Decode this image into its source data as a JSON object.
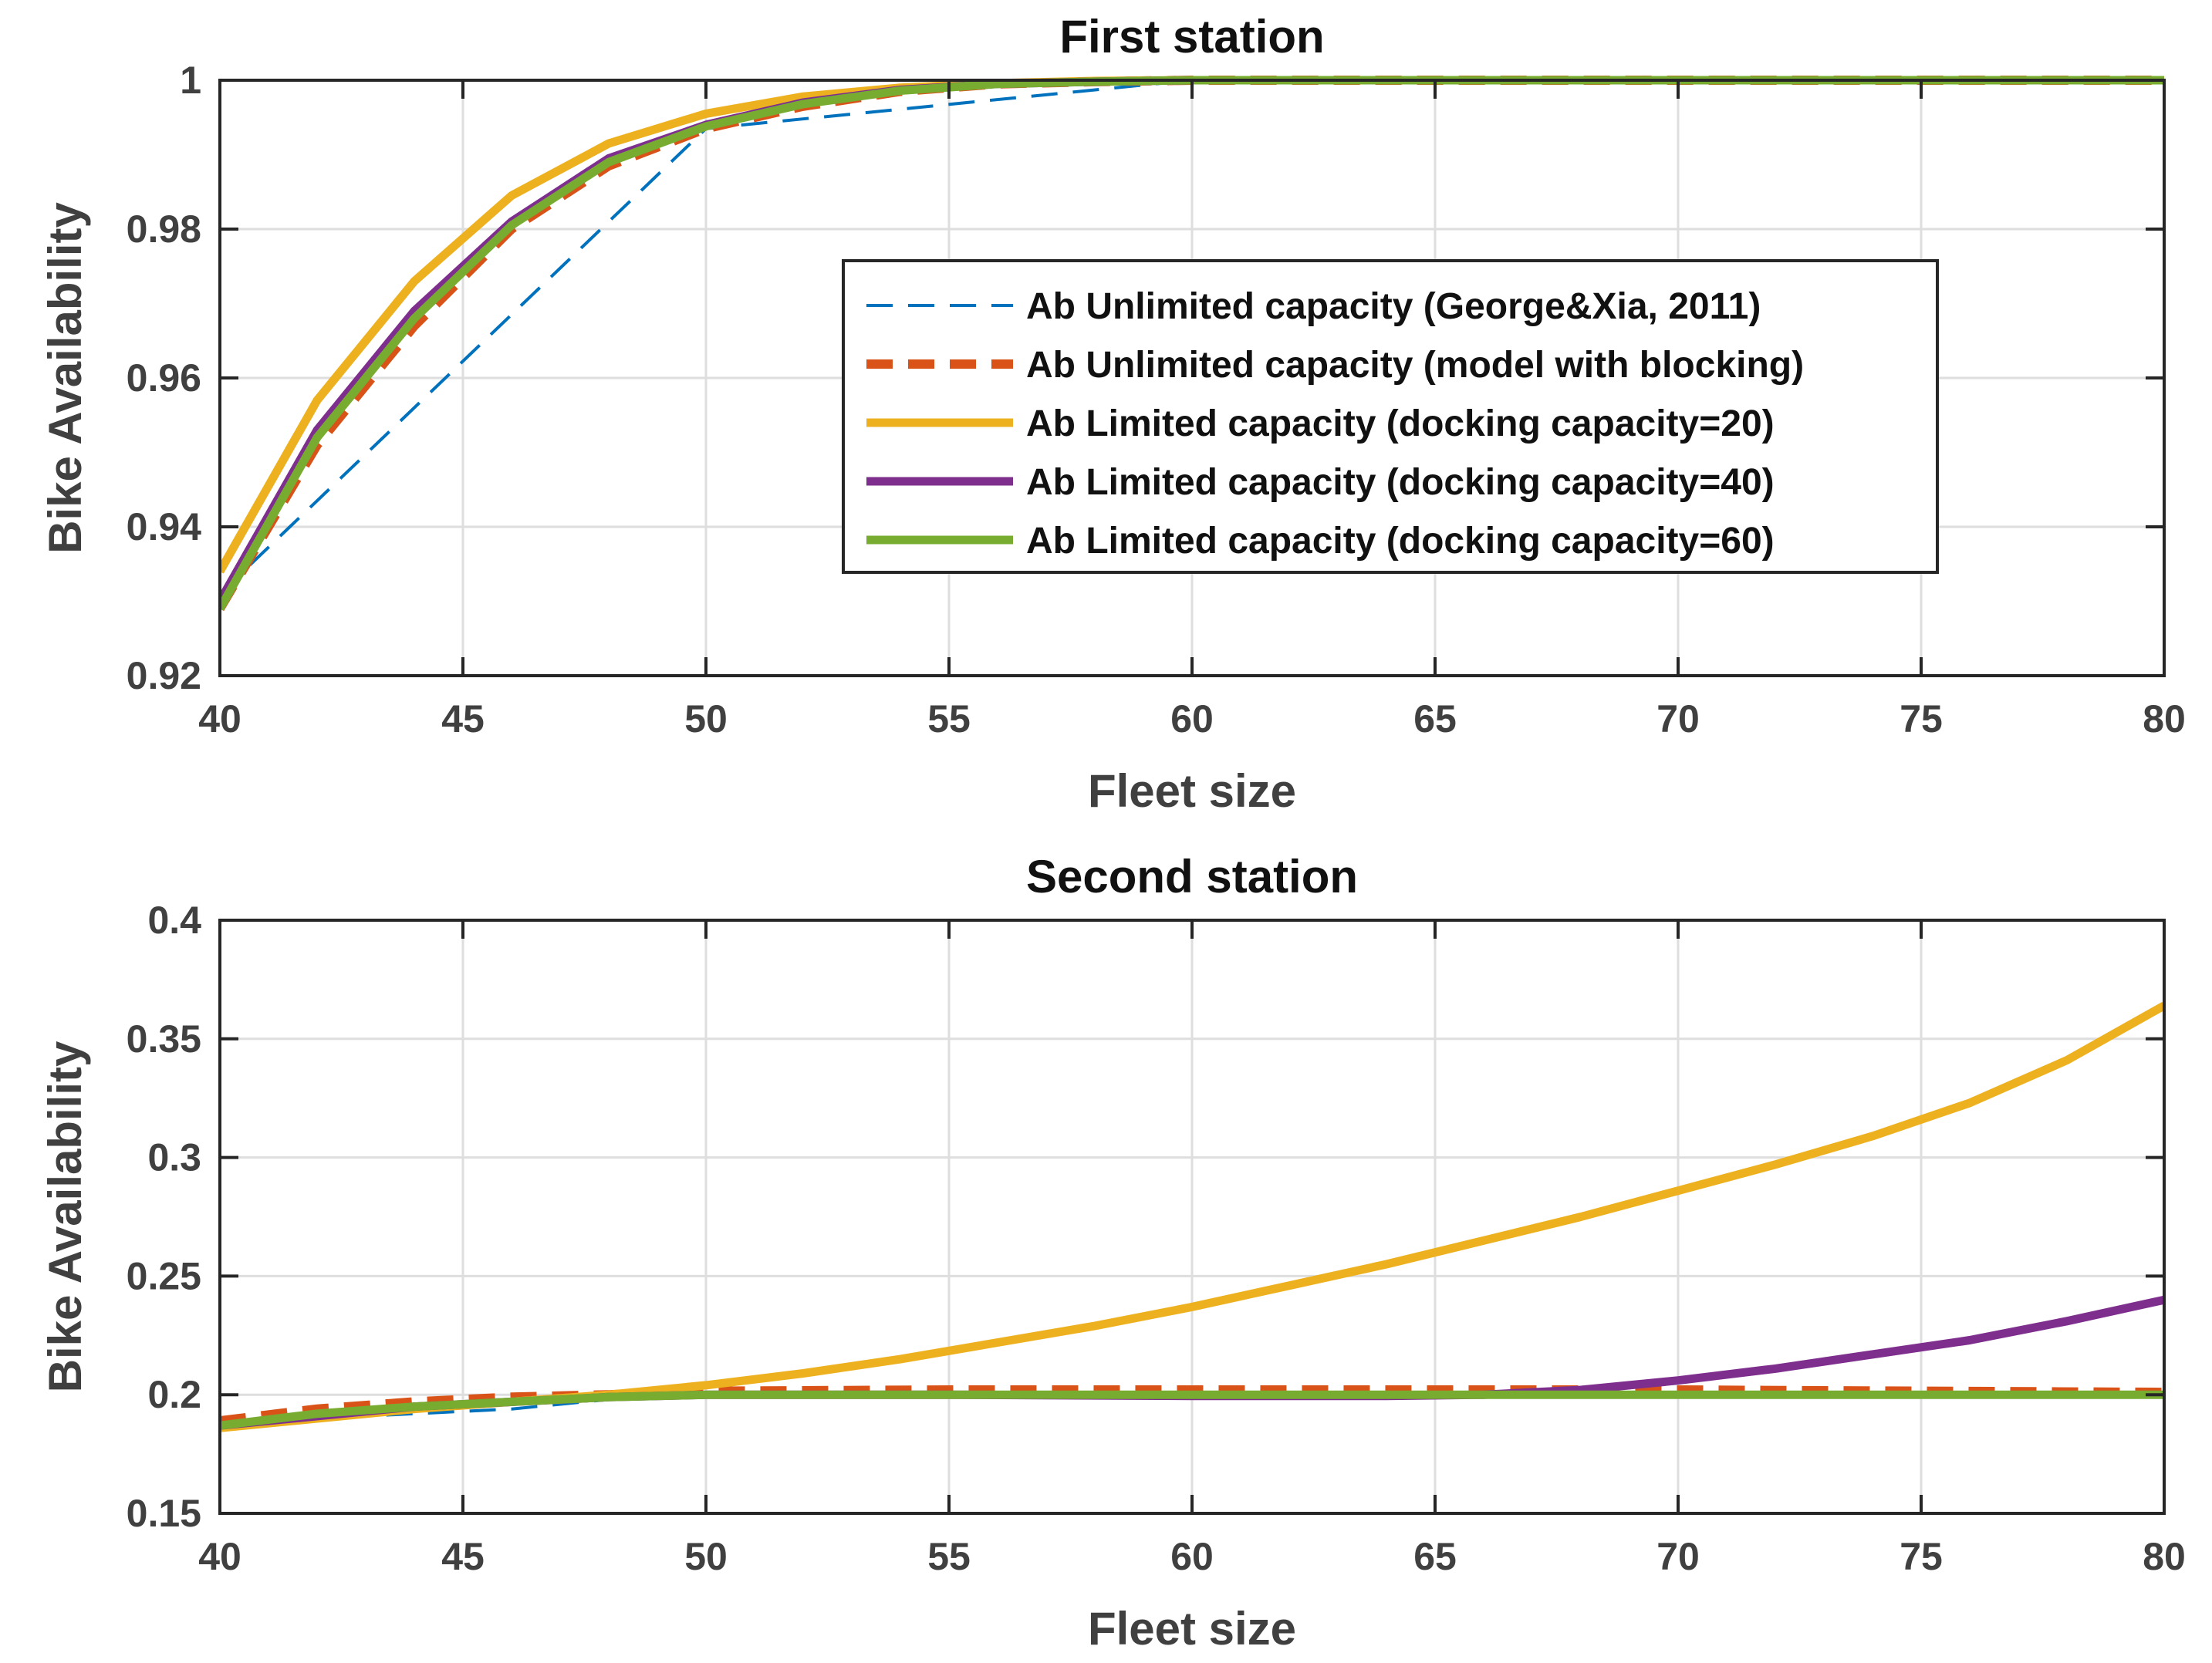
{
  "chart_data": [
    {
      "type": "line",
      "title": "First station",
      "xlabel": "Fleet size",
      "ylabel": "Bike Availability",
      "xlim": [
        40,
        80
      ],
      "ylim": [
        0.92,
        1.0
      ],
      "xticks": [
        40,
        45,
        50,
        55,
        60,
        65,
        70,
        75,
        80
      ],
      "yticks": [
        0.92,
        0.94,
        0.96,
        0.98,
        1
      ],
      "xtick_labels": [
        "40",
        "45",
        "50",
        "55",
        "60",
        "65",
        "70",
        "75",
        "80"
      ],
      "ytick_labels": [
        "0.92",
        "0.94",
        "0.96",
        "0.98",
        "1"
      ],
      "grid": true,
      "legend_position": "right-center",
      "series": [
        {
          "name": "Ab Unlimited capacity (George&Xia, 2011)",
          "color": "#0072BD",
          "style": "dashed-thin",
          "x": [
            40,
            50,
            60,
            80
          ],
          "y": [
            0.931,
            0.9935,
            1.0,
            1.0
          ]
        },
        {
          "name": "Ab Unlimited capacity (model with blocking)",
          "color": "#D95319",
          "style": "dashed-thick",
          "x": [
            40,
            42,
            44,
            46,
            48,
            50,
            52,
            54,
            56,
            58,
            60,
            80
          ],
          "y": [
            0.929,
            0.951,
            0.967,
            0.98,
            0.9885,
            0.9935,
            0.9965,
            0.9985,
            0.9995,
            0.9998,
            1.0,
            1.0
          ]
        },
        {
          "name": "Ab Limited capacity (docking capacity=20)",
          "color": "#EDB120",
          "style": "solid",
          "x": [
            40,
            42,
            44,
            46,
            48,
            50,
            52,
            54,
            56,
            58,
            60,
            80
          ],
          "y": [
            0.934,
            0.957,
            0.973,
            0.9845,
            0.9915,
            0.9955,
            0.9978,
            0.999,
            0.9996,
            0.9999,
            1.0,
            1.0
          ]
        },
        {
          "name": "Ab Limited capacity (docking capacity=40)",
          "color": "#7E2F8E",
          "style": "solid",
          "x": [
            40,
            42,
            44,
            46,
            48,
            50,
            52,
            54,
            56,
            58,
            60,
            80
          ],
          "y": [
            0.93,
            0.953,
            0.969,
            0.981,
            0.9895,
            0.994,
            0.997,
            0.9987,
            0.9995,
            0.9998,
            1.0,
            1.0
          ]
        },
        {
          "name": "Ab Limited capacity (docking capacity=60)",
          "color": "#77AC30",
          "style": "solid",
          "x": [
            40,
            42,
            44,
            46,
            48,
            50,
            52,
            54,
            56,
            58,
            60,
            80
          ],
          "y": [
            0.929,
            0.952,
            0.968,
            0.9805,
            0.989,
            0.9938,
            0.9968,
            0.9986,
            0.9995,
            0.9998,
            1.0,
            1.0
          ]
        }
      ]
    },
    {
      "type": "line",
      "title": "Second station",
      "xlabel": "Fleet size",
      "ylabel": "Bike Availability",
      "xlim": [
        40,
        80
      ],
      "ylim": [
        0.15,
        0.4
      ],
      "xticks": [
        40,
        45,
        50,
        55,
        60,
        65,
        70,
        75,
        80
      ],
      "yticks": [
        0.15,
        0.2,
        0.25,
        0.3,
        0.35,
        0.4
      ],
      "xtick_labels": [
        "40",
        "45",
        "50",
        "55",
        "60",
        "65",
        "70",
        "75",
        "80"
      ],
      "ytick_labels": [
        "0.15",
        "0.2",
        "0.25",
        "0.3",
        "0.35",
        "0.4"
      ],
      "grid": true,
      "series": [
        {
          "name": "Ab Unlimited capacity (George&Xia, 2011)",
          "color": "#0072BD",
          "style": "dashed-thin",
          "x": [
            40,
            44,
            46,
            48,
            50,
            60,
            65,
            80
          ],
          "y": [
            0.188,
            0.192,
            0.194,
            0.198,
            0.2,
            0.2,
            0.2,
            0.2
          ]
        },
        {
          "name": "Ab Unlimited capacity (model with blocking)",
          "color": "#D95319",
          "style": "dashed-thick",
          "x": [
            40,
            42,
            44,
            46,
            48,
            50,
            55,
            60,
            65,
            70,
            75,
            80
          ],
          "y": [
            0.189,
            0.194,
            0.197,
            0.199,
            0.2,
            0.2015,
            0.202,
            0.202,
            0.202,
            0.202,
            0.2015,
            0.201
          ]
        },
        {
          "name": "Ab Limited capacity (docking capacity=20)",
          "color": "#EDB120",
          "style": "solid",
          "x": [
            40,
            42,
            44,
            46,
            48,
            50,
            52,
            54,
            56,
            58,
            60,
            62,
            64,
            66,
            68,
            70,
            72,
            74,
            76,
            78,
            80
          ],
          "y": [
            0.186,
            0.19,
            0.194,
            0.197,
            0.2,
            0.204,
            0.209,
            0.215,
            0.222,
            0.229,
            0.237,
            0.246,
            0.255,
            0.265,
            0.275,
            0.286,
            0.297,
            0.309,
            0.323,
            0.341,
            0.364
          ]
        },
        {
          "name": "Ab Limited capacity (docking capacity=40)",
          "color": "#7E2F8E",
          "style": "solid",
          "x": [
            40,
            44,
            48,
            50,
            55,
            60,
            64,
            66,
            68,
            70,
            72,
            74,
            76,
            78,
            80
          ],
          "y": [
            0.187,
            0.195,
            0.199,
            0.2,
            0.2,
            0.1995,
            0.1995,
            0.2,
            0.202,
            0.206,
            0.211,
            0.217,
            0.223,
            0.231,
            0.24
          ]
        },
        {
          "name": "Ab Limited capacity (docking capacity=60)",
          "color": "#77AC30",
          "style": "solid",
          "x": [
            40,
            42,
            44,
            46,
            48,
            50,
            55,
            60,
            65,
            70,
            75,
            80
          ],
          "y": [
            0.187,
            0.192,
            0.195,
            0.197,
            0.199,
            0.2,
            0.2,
            0.2,
            0.2,
            0.2,
            0.2,
            0.2
          ]
        }
      ]
    }
  ]
}
